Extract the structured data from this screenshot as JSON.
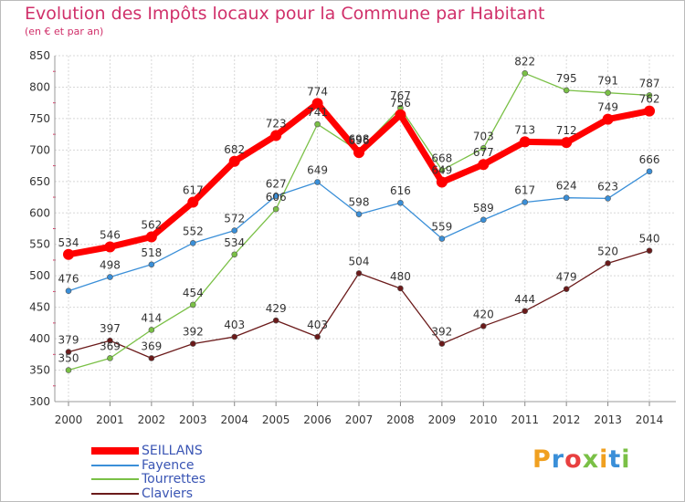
{
  "header": {
    "title": "Evolution des Impôts locaux pour la Commune par Habitant",
    "subtitle": "(en € et par an)"
  },
  "brand": {
    "text": "Proxiti",
    "colors": [
      "#f0a020",
      "#3a8fd8",
      "#e84040",
      "#7ac046",
      "#f0a020",
      "#3a8fd8",
      "#7ac046"
    ]
  },
  "chart_data": {
    "type": "line",
    "title": "Evolution des Impôts locaux pour la Commune par Habitant",
    "subtitle": "(en € et par an)",
    "xlabel": "",
    "ylabel": "",
    "x": [
      "2000",
      "2001",
      "2002",
      "2003",
      "2004",
      "2005",
      "2006",
      "2007",
      "2008",
      "2009",
      "2010",
      "2011",
      "2012",
      "2013",
      "2014"
    ],
    "ylim": [
      300,
      850
    ],
    "yticks": [
      300,
      350,
      400,
      450,
      500,
      550,
      600,
      650,
      700,
      750,
      800,
      850
    ],
    "grid": true,
    "legend_position": "bottom-left",
    "series": [
      {
        "name": "Claviers",
        "color": "#6b1a1a",
        "values": [
          379,
          397,
          369,
          392,
          403,
          429,
          403,
          504,
          480,
          392,
          420,
          444,
          479,
          520,
          540
        ]
      },
      {
        "name": "Fayence",
        "color": "#3a8fd8",
        "values": [
          476,
          498,
          518,
          552,
          572,
          627,
          649,
          598,
          616,
          559,
          589,
          617,
          624,
          623,
          666
        ]
      },
      {
        "name": "Tourrettes",
        "color": "#7ac046",
        "values": [
          350,
          369,
          414,
          454,
          534,
          606,
          741,
          698,
          767,
          668,
          703,
          822,
          795,
          791,
          787
        ]
      },
      {
        "name": "SEILLANS",
        "color": "#ff0000",
        "values": [
          534,
          546,
          562,
          617,
          682,
          723,
          774,
          696,
          756,
          649,
          677,
          713,
          712,
          749,
          762
        ]
      }
    ]
  }
}
